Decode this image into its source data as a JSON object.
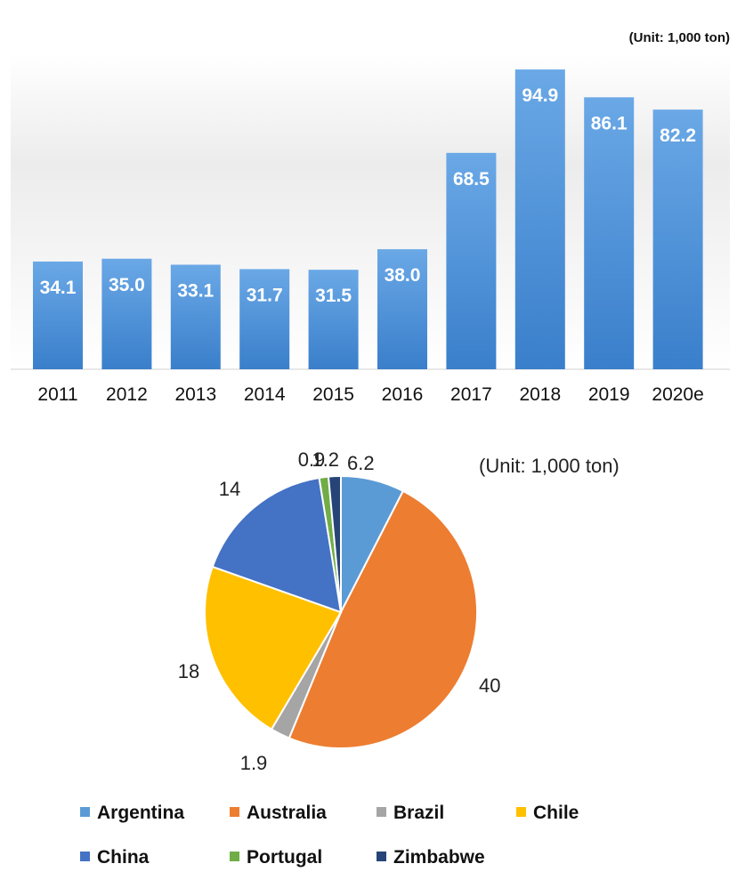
{
  "chart_data": [
    {
      "type": "bar",
      "unit_label": "(Unit: 1,000 ton)",
      "categories": [
        "2011",
        "2012",
        "2013",
        "2014",
        "2015",
        "2016",
        "2017",
        "2018",
        "2019",
        "2020e"
      ],
      "values": [
        34.1,
        35.0,
        33.1,
        31.7,
        31.5,
        38.0,
        68.5,
        94.9,
        86.1,
        82.2
      ],
      "data_labels": [
        "34.1",
        "35.0",
        "33.1",
        "31.7",
        "31.5",
        "38.0",
        "68.5",
        "94.9",
        "86.1",
        "82.2"
      ],
      "ylim": [
        0,
        100
      ],
      "grid": false,
      "colors": {
        "bar": "#4a8fd6",
        "bar_light": "#69a7e6",
        "bar_dark": "#3b7fca"
      }
    },
    {
      "type": "pie",
      "unit_label": "(Unit: 1,000 ton)",
      "legend_position": "bottom",
      "slices": [
        {
          "name": "Argentina",
          "value": 6.2,
          "label": "6.2",
          "color": "#5b9bd5"
        },
        {
          "name": "Australia",
          "value": 40,
          "label": "40",
          "color": "#ed7d31"
        },
        {
          "name": "Brazil",
          "value": 1.9,
          "label": "1.9",
          "color": "#a5a5a5"
        },
        {
          "name": "Chile",
          "value": 18,
          "label": "18",
          "color": "#ffc000"
        },
        {
          "name": "China",
          "value": 14,
          "label": "14",
          "color": "#4472c4"
        },
        {
          "name": "Portugal",
          "value": 0.9,
          "label": "0.9",
          "color": "#70ad47"
        },
        {
          "name": "Zimbabwe",
          "value": 1.2,
          "label": "1.2",
          "color": "#264478"
        }
      ]
    }
  ]
}
